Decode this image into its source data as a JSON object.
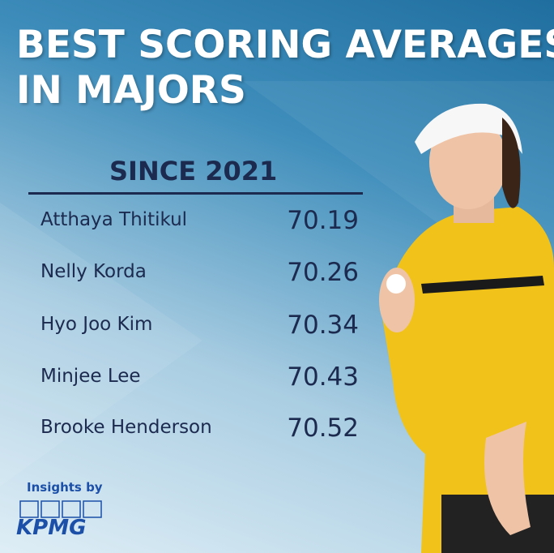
{
  "header": {
    "title_lines": [
      "BEST SCORING AVERAGES",
      "IN MAJORS"
    ]
  },
  "table": {
    "heading": "SINCE 2021",
    "rows": [
      [
        "Atthaya Thitikul",
        70.19
      ],
      [
        "Nelly Korda",
        70.26
      ],
      [
        "Hyo Joo Kim",
        70.34
      ],
      [
        "Minjee Lee",
        70.43
      ],
      [
        "Brooke Henderson",
        70.52
      ]
    ]
  },
  "footer": {
    "tagline": "Insights by",
    "logo": "KPMG"
  }
}
